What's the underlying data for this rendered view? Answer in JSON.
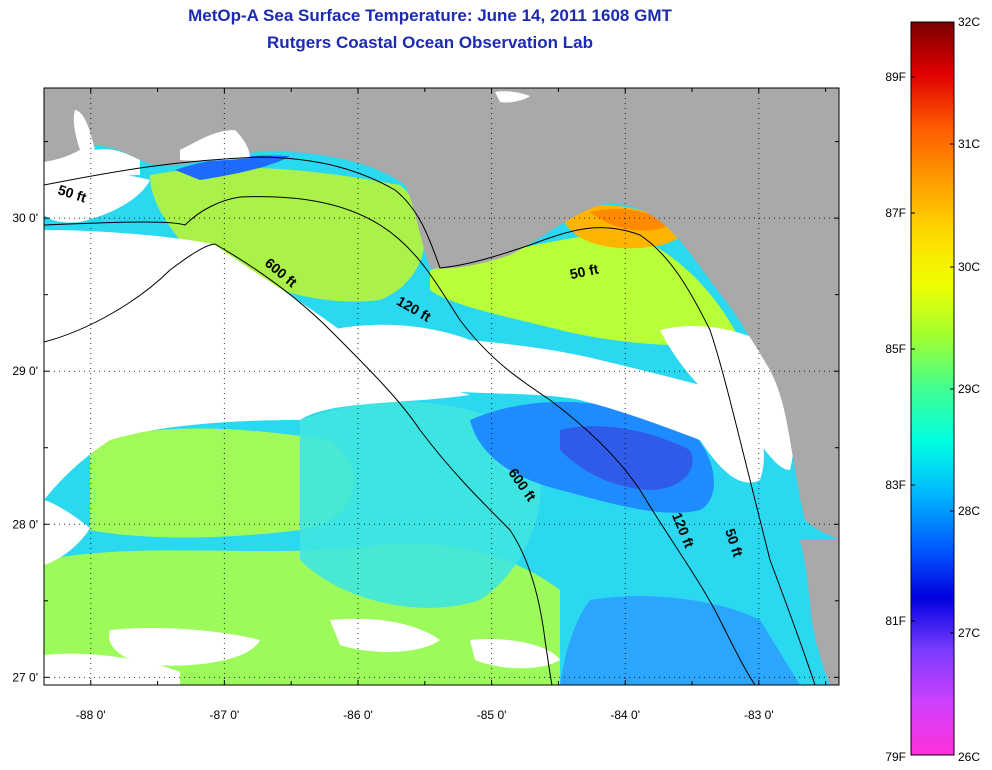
{
  "title": {
    "line1": "MetOp-A Sea Surface Temperature:  June 14, 2011 1608 GMT",
    "line2": "Rutgers Coastal Ocean Observation Lab"
  },
  "map": {
    "lon_range": [
      -88.35,
      -82.4
    ],
    "lat_range": [
      26.95,
      30.85
    ],
    "x_ticks": [
      {
        "value": -88,
        "label": "-88 0'"
      },
      {
        "value": -87,
        "label": "-87 0'"
      },
      {
        "value": -86,
        "label": "-86 0'"
      },
      {
        "value": -85,
        "label": "-85 0'"
      },
      {
        "value": -84,
        "label": "-84 0'"
      },
      {
        "value": -83,
        "label": "-83 0'"
      }
    ],
    "y_ticks": [
      {
        "value": 30,
        "label": "30 0'"
      },
      {
        "value": 29,
        "label": "29 0'"
      },
      {
        "value": 28,
        "label": "28 0'"
      },
      {
        "value": 27,
        "label": "27 0'"
      }
    ],
    "grid": "dotted",
    "colors": {
      "land": "#a9a9a9",
      "cloud": "#ffffff",
      "contour": "#000000"
    },
    "contour_labels": [
      {
        "text": "50 ft",
        "lon": -88.15,
        "lat": 30.13,
        "angle": 18
      },
      {
        "text": "600 ft",
        "lon": -86.6,
        "lat": 29.62,
        "angle": 40
      },
      {
        "text": "120 ft",
        "lon": -85.6,
        "lat": 29.38,
        "angle": 30
      },
      {
        "text": "50 ft",
        "lon": -84.3,
        "lat": 29.62,
        "angle": -12
      },
      {
        "text": "600 ft",
        "lon": -84.8,
        "lat": 28.24,
        "angle": 55
      },
      {
        "text": "120 ft",
        "lon": -83.6,
        "lat": 27.95,
        "angle": 68
      },
      {
        "text": "50 ft",
        "lon": -83.22,
        "lat": 27.87,
        "angle": 72
      }
    ]
  },
  "colorbar": {
    "celsius": [
      "32C",
      "31C",
      "30C",
      "29C",
      "28C",
      "27C",
      "26C"
    ],
    "fahrenheit": [
      "89F",
      "87F",
      "85F",
      "83F",
      "81F",
      "79F"
    ],
    "stops": [
      "#7a0000",
      "#e00000",
      "#ff5a00",
      "#ff9a00",
      "#ffd800",
      "#f0ff00",
      "#a0ff30",
      "#40ff90",
      "#00ffe0",
      "#00b8ff",
      "#0060ff",
      "#0000e0",
      "#7a3cff",
      "#d040ff",
      "#ff30d8"
    ]
  }
}
